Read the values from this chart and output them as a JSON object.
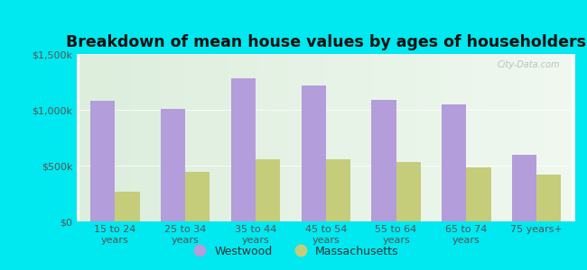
{
  "title": "Breakdown of mean house values by ages of householders",
  "categories": [
    "15 to 24\nyears",
    "25 to 34\nyears",
    "35 to 44\nyears",
    "45 to 54\nyears",
    "55 to 64\nyears",
    "65 to 74\nyears",
    "75 years+"
  ],
  "westwood": [
    1080000,
    1010000,
    1280000,
    1220000,
    1090000,
    1050000,
    600000
  ],
  "massachusetts": [
    270000,
    440000,
    560000,
    560000,
    530000,
    480000,
    420000
  ],
  "westwood_color": "#b39ddb",
  "massachusetts_color": "#c5cc7a",
  "background_outer": "#00e8f0",
  "plot_bg_left": "#ddeedd",
  "plot_bg_right": "#f0f8f0",
  "ylim": [
    0,
    1500000
  ],
  "yticks": [
    0,
    500000,
    1000000,
    1500000
  ],
  "ytick_labels": [
    "$0",
    "$500k",
    "$1,000k",
    "$1,500k"
  ],
  "legend_labels": [
    "Westwood",
    "Massachusetts"
  ],
  "bar_width": 0.35,
  "title_fontsize": 12.5,
  "tick_fontsize": 8,
  "legend_fontsize": 9,
  "watermark": "City-Data.com"
}
